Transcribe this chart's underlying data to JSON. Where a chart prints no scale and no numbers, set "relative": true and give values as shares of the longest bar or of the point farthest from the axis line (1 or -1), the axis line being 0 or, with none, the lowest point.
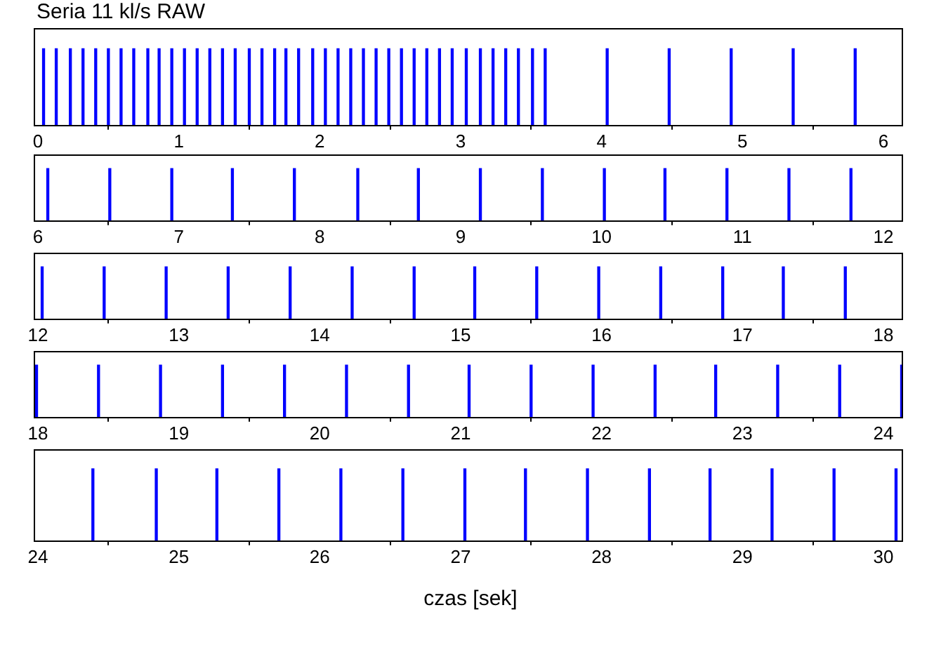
{
  "chart_data": [
    {
      "type": "bar",
      "title": "Seria 11 kl/s RAW",
      "relative": true,
      "grid": false,
      "legend": false,
      "x": [
        0.04,
        0.13,
        0.23,
        0.32,
        0.41,
        0.5,
        0.59,
        0.68,
        0.78,
        0.86,
        0.95,
        1.04,
        1.13,
        1.22,
        1.31,
        1.4,
        1.5,
        1.59,
        1.68,
        1.76,
        1.85,
        1.95,
        2.04,
        2.13,
        2.22,
        2.31,
        2.4,
        2.49,
        2.58,
        2.67,
        2.76,
        2.85,
        2.94,
        3.04,
        3.14,
        3.23,
        3.32,
        3.41,
        3.51,
        3.6,
        4.04,
        4.48,
        4.92,
        5.36,
        5.8
      ],
      "series": [
        {
          "color": "#0000ff",
          "values": [
            1,
            1,
            1,
            1,
            1,
            1,
            1,
            1,
            1,
            1,
            1,
            1,
            1,
            1,
            1,
            1,
            1,
            1,
            1,
            1,
            1,
            1,
            1,
            1,
            1,
            1,
            1,
            1,
            1,
            1,
            1,
            1,
            1,
            1,
            1,
            1,
            1,
            1,
            1,
            1,
            1,
            1,
            1,
            1,
            1
          ]
        }
      ],
      "xlim": [
        -0.03,
        6.13
      ],
      "xticks": [
        0,
        1,
        2,
        3,
        4,
        5,
        6
      ]
    },
    {
      "type": "bar",
      "relative": true,
      "grid": false,
      "legend": false,
      "x": [
        6.07,
        6.51,
        6.95,
        7.38,
        7.82,
        8.27,
        8.7,
        9.14,
        9.58,
        10.02,
        10.45,
        10.89,
        11.33,
        11.77
      ],
      "series": [
        {
          "color": "#0000ff",
          "values": [
            1,
            1,
            1,
            1,
            1,
            1,
            1,
            1,
            1,
            1,
            1,
            1,
            1,
            1
          ]
        }
      ],
      "xlim": [
        5.97,
        12.13
      ],
      "xticks": [
        6,
        7,
        8,
        9,
        10,
        11,
        12
      ]
    },
    {
      "type": "bar",
      "relative": true,
      "grid": false,
      "legend": false,
      "x": [
        12.03,
        12.47,
        12.91,
        13.35,
        13.79,
        14.23,
        14.67,
        15.1,
        15.54,
        15.98,
        16.42,
        16.86,
        17.29,
        17.73
      ],
      "series": [
        {
          "color": "#0000ff",
          "values": [
            1,
            1,
            1,
            1,
            1,
            1,
            1,
            1,
            1,
            1,
            1,
            1,
            1,
            1
          ]
        }
      ],
      "xlim": [
        11.97,
        18.13
      ],
      "xticks": [
        12,
        13,
        14,
        15,
        16,
        17,
        18
      ]
    },
    {
      "type": "bar",
      "relative": true,
      "grid": false,
      "legend": false,
      "x": [
        17.99,
        18.43,
        18.87,
        19.31,
        19.75,
        20.19,
        20.63,
        21.06,
        21.5,
        21.94,
        22.38,
        22.81,
        23.25,
        23.69,
        24.13
      ],
      "series": [
        {
          "color": "#0000ff",
          "values": [
            1,
            1,
            1,
            1,
            1,
            1,
            1,
            1,
            1,
            1,
            1,
            1,
            1,
            1,
            1
          ]
        }
      ],
      "xlim": [
        17.97,
        24.13
      ],
      "xticks": [
        18,
        19,
        20,
        21,
        22,
        23,
        24
      ]
    },
    {
      "type": "bar",
      "xlabel": "czas [sek]",
      "relative": true,
      "grid": false,
      "legend": false,
      "x": [
        24.39,
        24.84,
        25.27,
        25.71,
        26.15,
        26.59,
        27.03,
        27.46,
        27.9,
        28.34,
        28.77,
        29.21,
        29.65,
        30.09
      ],
      "series": [
        {
          "color": "#0000ff",
          "values": [
            1,
            1,
            1,
            1,
            1,
            1,
            1,
            1,
            1,
            1,
            1,
            1,
            1,
            1
          ]
        }
      ],
      "xlim": [
        23.97,
        30.13
      ],
      "xticks": [
        24,
        25,
        26,
        27,
        28,
        29,
        30
      ]
    }
  ]
}
